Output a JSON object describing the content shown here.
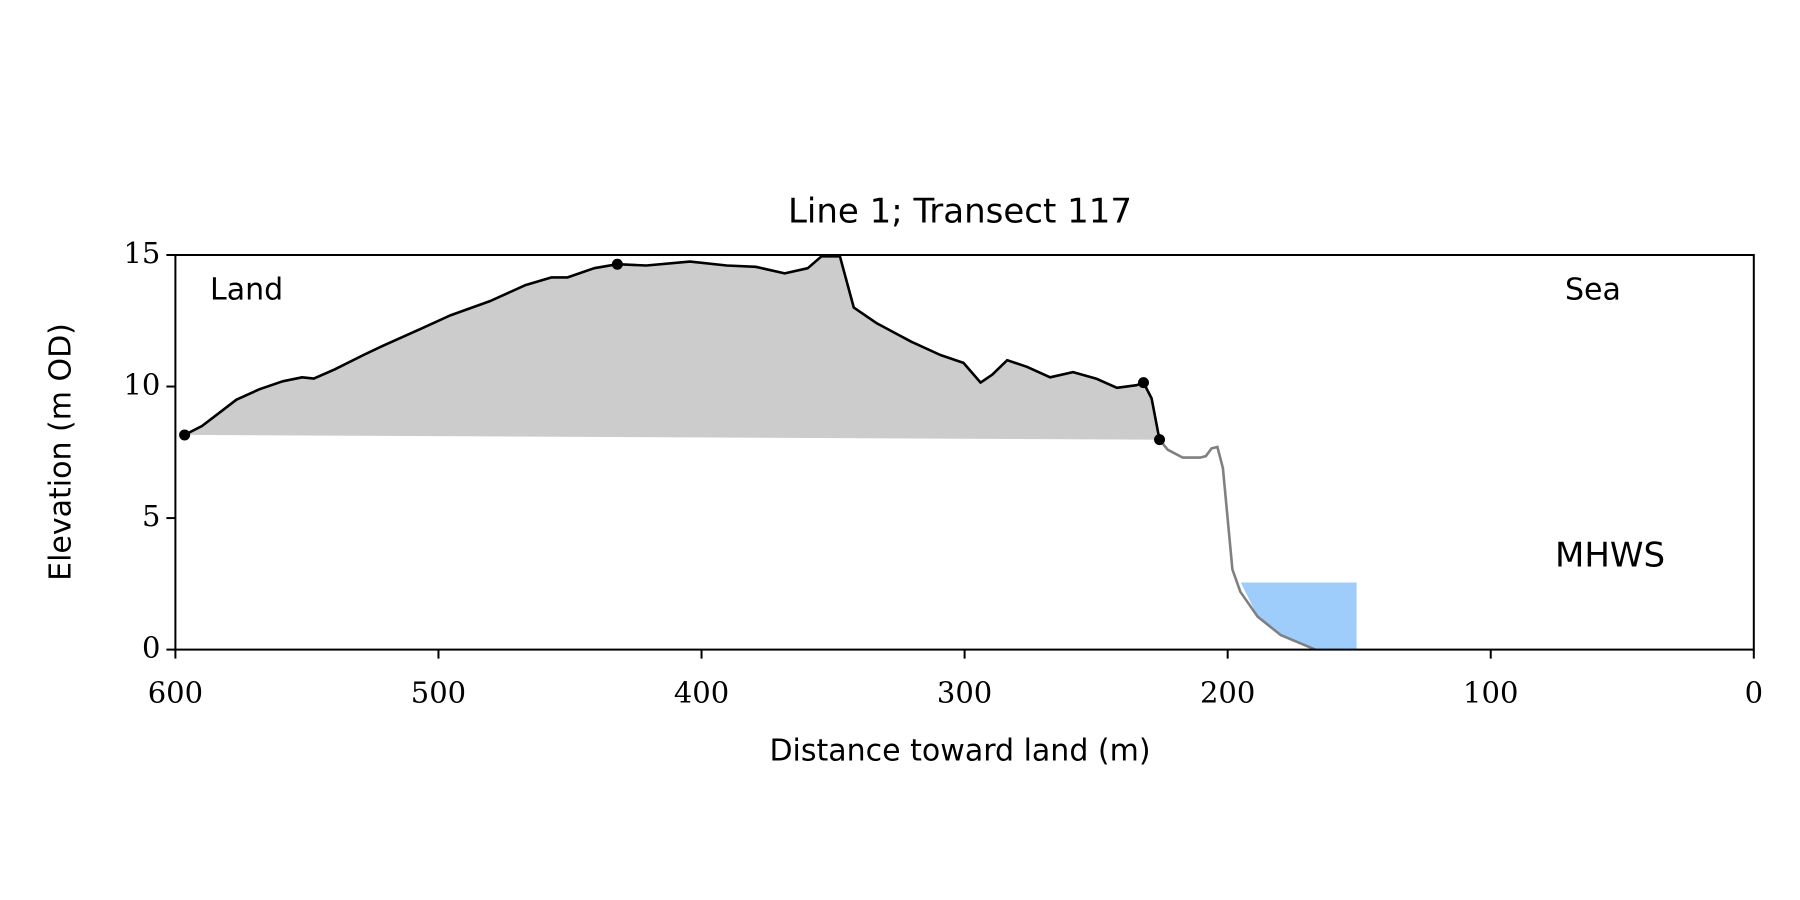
{
  "chart_data": {
    "type": "profile",
    "title": "Line 1; Transect 117",
    "xlabel": "Distance toward land (m)",
    "ylabel": "Elevation (m OD)",
    "xlim": [
      600,
      0
    ],
    "ylim": [
      0,
      15
    ],
    "xticks": [
      600,
      500,
      400,
      300,
      200,
      100,
      0
    ],
    "yticks": [
      0,
      5,
      10,
      15
    ],
    "profile": {
      "color": "#000000",
      "fill": "#cccccc",
      "x": [
        596.5,
        589.9,
        583.3,
        576.8,
        568,
        559.2,
        551.8,
        547.4,
        539.5,
        528.5,
        520,
        506.6,
        495.6,
        480.3,
        467.1,
        457,
        450.9,
        440.8,
        432,
        421,
        404.4,
        390.4,
        379.4,
        368.4,
        359.6,
        354.4,
        347.4,
        342.1,
        333.3,
        320.2,
        309.2,
        300.4,
        293.9,
        289.5,
        283.8,
        276.3,
        267.5,
        258.8,
        250,
        242.1,
        234.6,
        232,
        228.9,
        225.9
      ],
      "y": [
        8.16,
        8.5,
        9.0,
        9.5,
        9.9,
        10.2,
        10.35,
        10.3,
        10.65,
        11.2,
        11.6,
        12.2,
        12.7,
        13.25,
        13.85,
        14.15,
        14.15,
        14.5,
        14.65,
        14.6,
        14.75,
        14.6,
        14.55,
        14.3,
        14.5,
        14.95,
        14.95,
        13.0,
        12.4,
        11.7,
        11.2,
        10.9,
        10.15,
        10.45,
        11.0,
        10.75,
        10.35,
        10.55,
        10.3,
        9.95,
        10.05,
        10.15,
        9.55,
        7.98
      ]
    },
    "seaward": {
      "color": "#808080",
      "x": [
        225.9,
        222.8,
        217.1,
        210.5,
        208.3,
        206.1,
        203.9,
        201.8,
        198.2,
        195.2,
        188.6,
        179.8,
        166.7
      ],
      "y": [
        7.98,
        7.6,
        7.3,
        7.3,
        7.35,
        7.65,
        7.7,
        6.9,
        3.05,
        2.2,
        1.25,
        0.55,
        0.0
      ]
    },
    "markers": {
      "color": "#000000",
      "x": [
        596.5,
        432,
        232,
        225.9
      ],
      "y": [
        8.16,
        14.65,
        10.15,
        7.98
      ]
    },
    "mhws": {
      "label": "MHWS",
      "value": 2.55,
      "x_range": [
        195,
        151
      ],
      "color": "#9ecdfc",
      "label_color": "#6699cc"
    },
    "annotations": [
      "Land",
      "Sea"
    ]
  }
}
